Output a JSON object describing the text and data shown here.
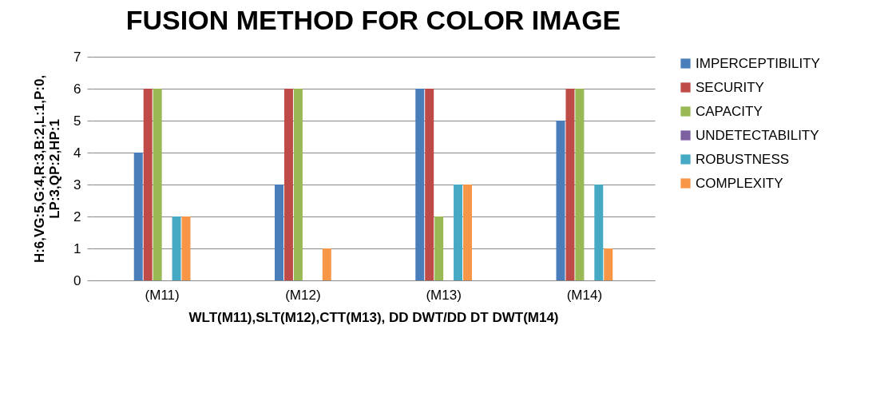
{
  "chart_data": {
    "type": "bar",
    "title": "FUSION METHOD FOR COLOR IMAGE",
    "xlabel": "WLT(M11),SLT(M12),CTT(M13), DD DWT/DD DT DWT(M14)",
    "ylabel": "H:6,VG:5,G:4,R:3,B:2,L:1,P:0,\nLP:3,QP:2,HP:1",
    "categories": [
      "(M11)",
      "(M12)",
      "(M13)",
      "(M14)"
    ],
    "series": [
      {
        "name": "IMPERCEPTIBILITY",
        "color": "#4a7ebb",
        "values": [
          4,
          3,
          6,
          5
        ]
      },
      {
        "name": "SECURITY",
        "color": "#be4b48",
        "values": [
          6,
          6,
          6,
          6
        ]
      },
      {
        "name": "CAPACITY",
        "color": "#98b954",
        "values": [
          6,
          6,
          2,
          6
        ]
      },
      {
        "name": "UNDETECTABILITY",
        "color": "#7d60a0",
        "values": [
          0,
          0,
          0,
          0
        ]
      },
      {
        "name": "ROBUSTNESS",
        "color": "#46aac5",
        "values": [
          2,
          0,
          3,
          3
        ]
      },
      {
        "name": "COMPLEXITY",
        "color": "#f79646",
        "values": [
          2,
          1,
          3,
          1
        ]
      }
    ],
    "ylim": [
      0,
      7
    ],
    "yticks": [
      0,
      1,
      2,
      3,
      4,
      5,
      6,
      7
    ],
    "grid": "y",
    "legend": "right"
  }
}
